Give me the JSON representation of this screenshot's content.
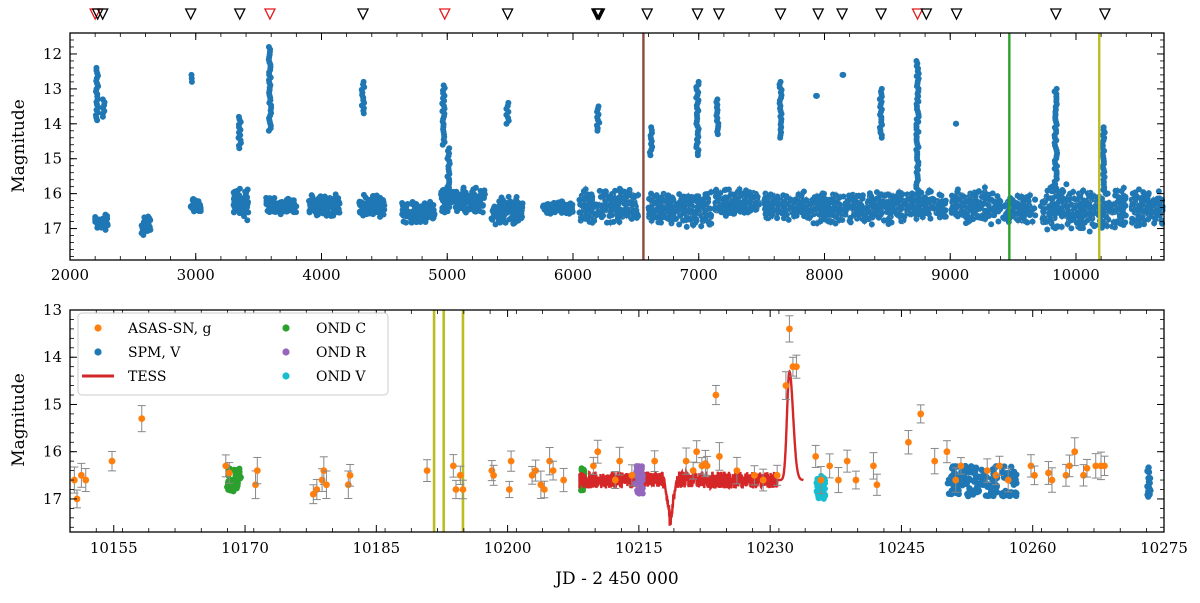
{
  "chart_data": [
    {
      "type": "scatter",
      "title": "",
      "xlabel": "",
      "ylabel": "Magnitude",
      "xlim": [
        2000,
        10700
      ],
      "ylim": [
        17.9,
        11.4
      ],
      "y_inverted": true,
      "x_ticks": [
        "2000",
        "3000",
        "4000",
        "5000",
        "6000",
        "7000",
        "8000",
        "9000",
        "10000"
      ],
      "y_ticks": [
        "12",
        "13",
        "14",
        "15",
        "16",
        "17"
      ],
      "series": [
        {
          "name": "SPM, V",
          "color": "#1f77b4",
          "baseline_groups": [
            {
              "x": [
                2200,
                2300
              ],
              "mag": [
                16.5,
                17.1
              ]
            },
            {
              "x": [
                2560,
                2640
              ],
              "mag": [
                16.6,
                17.3
              ]
            },
            {
              "x": [
                2960,
                3040
              ],
              "mag": [
                16.1,
                16.6
              ]
            },
            {
              "x": [
                3300,
                3420
              ],
              "mag": [
                15.8,
                16.8
              ]
            },
            {
              "x": [
                3560,
                3800
              ],
              "mag": [
                16.1,
                16.6
              ]
            },
            {
              "x": [
                3900,
                4150
              ],
              "mag": [
                16.0,
                16.7
              ]
            },
            {
              "x": [
                4300,
                4500
              ],
              "mag": [
                16.0,
                16.7
              ]
            },
            {
              "x": [
                4640,
                4900
              ],
              "mag": [
                16.2,
                16.9
              ]
            },
            {
              "x": [
                4950,
                5300
              ],
              "mag": [
                15.8,
                16.6
              ]
            },
            {
              "x": [
                5350,
                5600
              ],
              "mag": [
                16.0,
                16.9
              ]
            },
            {
              "x": [
                5760,
                6000
              ],
              "mag": [
                16.2,
                16.6
              ]
            },
            {
              "x": [
                6050,
                6520
              ],
              "mag": [
                15.8,
                16.9
              ]
            },
            {
              "x": [
                6600,
                7100
              ],
              "mag": [
                15.9,
                17.0
              ]
            },
            {
              "x": [
                7130,
                7480
              ],
              "mag": [
                15.8,
                16.7
              ]
            },
            {
              "x": [
                7520,
                7870
              ],
              "mag": [
                15.9,
                16.8
              ]
            },
            {
              "x": [
                7880,
                8260
              ],
              "mag": [
                15.9,
                16.9
              ]
            },
            {
              "x": [
                8270,
                8640
              ],
              "mag": [
                15.9,
                16.9
              ]
            },
            {
              "x": [
                8650,
                8970
              ],
              "mag": [
                15.9,
                16.8
              ]
            },
            {
              "x": [
                9010,
                9400
              ],
              "mag": [
                15.8,
                16.9
              ]
            },
            {
              "x": [
                9420,
                9680
              ],
              "mag": [
                15.9,
                16.9
              ]
            },
            {
              "x": [
                9720,
                10070
              ],
              "mag": [
                15.7,
                17.1
              ]
            },
            {
              "x": [
                10090,
                10400
              ],
              "mag": [
                15.8,
                17.1
              ]
            },
            {
              "x": [
                10440,
                10690
              ],
              "mag": [
                15.8,
                17.0
              ]
            }
          ],
          "outbursts": [
            {
              "x": 2215,
              "peak": 12.4,
              "base": 13.9
            },
            {
              "x": 2265,
              "peak": 13.3,
              "base": 13.8
            },
            {
              "x": 2960,
              "peak": 12.6,
              "base": 12.8
            },
            {
              "x": 3350,
              "peak": 13.8,
              "base": 14.7
            },
            {
              "x": 3590,
              "peak": 11.8,
              "base": 14.2
            },
            {
              "x": 4330,
              "peak": 12.8,
              "base": 13.7
            },
            {
              "x": 4970,
              "peak": 12.9,
              "base": 14.6
            },
            {
              "x": 5010,
              "peak": 14.7,
              "base": 16.1
            },
            {
              "x": 5480,
              "peak": 13.4,
              "base": 14.0
            },
            {
              "x": 6200,
              "peak": 13.5,
              "base": 14.2
            },
            {
              "x": 6620,
              "peak": 14.1,
              "base": 14.9
            },
            {
              "x": 6990,
              "peak": 12.8,
              "base": 14.9
            },
            {
              "x": 7150,
              "peak": 13.3,
              "base": 14.3
            },
            {
              "x": 7650,
              "peak": 12.8,
              "base": 14.4
            },
            {
              "x": 7940,
              "peak": 13.2,
              "base": 13.2
            },
            {
              "x": 8140,
              "peak": 12.6,
              "base": 12.6
            },
            {
              "x": 8450,
              "peak": 13.0,
              "base": 14.4
            },
            {
              "x": 8740,
              "peak": 12.2,
              "base": 15.9
            },
            {
              "x": 9040,
              "peak": 14.0,
              "base": 14.0
            },
            {
              "x": 9840,
              "peak": 13.0,
              "base": 15.8
            },
            {
              "x": 10220,
              "peak": 14.1,
              "base": 15.9
            }
          ]
        }
      ],
      "vlines": [
        {
          "x": 6560,
          "color": "#8c4a3f"
        },
        {
          "x": 9470,
          "color": "#2ca02c"
        },
        {
          "x": 10185,
          "color": "#bcbd22"
        }
      ],
      "top_markers": [
        {
          "x": 2200,
          "color": "red"
        },
        {
          "x": 2220,
          "color": "black"
        },
        {
          "x": 2260,
          "color": "black"
        },
        {
          "x": 2960,
          "color": "black"
        },
        {
          "x": 3350,
          "color": "black"
        },
        {
          "x": 3590,
          "color": "red"
        },
        {
          "x": 4330,
          "color": "black"
        },
        {
          "x": 4980,
          "color": "red"
        },
        {
          "x": 5480,
          "color": "black"
        },
        {
          "x": 6190,
          "color": "black"
        },
        {
          "x": 6200,
          "color": "black"
        },
        {
          "x": 6210,
          "color": "black"
        },
        {
          "x": 6590,
          "color": "black"
        },
        {
          "x": 6990,
          "color": "black"
        },
        {
          "x": 7160,
          "color": "black"
        },
        {
          "x": 7650,
          "color": "black"
        },
        {
          "x": 7950,
          "color": "black"
        },
        {
          "x": 8140,
          "color": "black"
        },
        {
          "x": 8450,
          "color": "black"
        },
        {
          "x": 8740,
          "color": "red"
        },
        {
          "x": 8810,
          "color": "black"
        },
        {
          "x": 9050,
          "color": "black"
        },
        {
          "x": 9840,
          "color": "black"
        },
        {
          "x": 10230,
          "color": "black"
        }
      ]
    },
    {
      "type": "scatter",
      "title": "",
      "xlabel": "JD - 2 450 000",
      "ylabel": "Magnitude",
      "xlim": [
        10150,
        10275
      ],
      "ylim": [
        17.7,
        13.0
      ],
      "y_inverted": true,
      "x_ticks": [
        "10155",
        "10170",
        "10185",
        "10200",
        "10215",
        "10230",
        "10245",
        "10260",
        "10275"
      ],
      "y_ticks": [
        "13",
        "14",
        "15",
        "16",
        "17"
      ],
      "legend": {
        "placement": "top-left",
        "entries": [
          {
            "label": "ASAS-SN, g",
            "color": "#ff7f0e",
            "kind": "dot"
          },
          {
            "label": "SPM, V",
            "color": "#1f77b4",
            "kind": "dot"
          },
          {
            "label": "TESS",
            "color": "#d62728",
            "kind": "line"
          },
          {
            "label": "OND C",
            "color": "#2ca02c",
            "kind": "dot"
          },
          {
            "label": "OND R",
            "color": "#9467bd",
            "kind": "dot"
          },
          {
            "label": "OND V",
            "color": "#17becf",
            "kind": "dot"
          }
        ]
      },
      "asassn_g": [
        [
          10150.5,
          16.6
        ],
        [
          10150.8,
          17.0
        ],
        [
          10151.3,
          16.5
        ],
        [
          10151.8,
          16.6
        ],
        [
          10154.8,
          16.2
        ],
        [
          10158.2,
          15.3
        ],
        [
          10167.8,
          16.3
        ],
        [
          10168.2,
          16.45
        ],
        [
          10171.2,
          16.7
        ],
        [
          10171.4,
          16.4
        ],
        [
          10177.8,
          16.9
        ],
        [
          10178.2,
          16.8
        ],
        [
          10178.8,
          16.6
        ],
        [
          10179.0,
          16.4
        ],
        [
          10179.3,
          16.7
        ],
        [
          10181.8,
          16.7
        ],
        [
          10182.0,
          16.5
        ],
        [
          10190.8,
          16.4
        ],
        [
          10193.8,
          16.3
        ],
        [
          10194.1,
          16.8
        ],
        [
          10194.6,
          16.5
        ],
        [
          10194.9,
          16.8
        ],
        [
          10198.2,
          16.4
        ],
        [
          10198.4,
          16.5
        ],
        [
          10200.2,
          16.8
        ],
        [
          10200.4,
          16.2
        ],
        [
          10202.8,
          16.5
        ],
        [
          10203.2,
          16.4
        ],
        [
          10203.8,
          16.7
        ],
        [
          10204.2,
          16.8
        ],
        [
          10204.8,
          16.2
        ],
        [
          10205.2,
          16.4
        ],
        [
          10206.4,
          16.6
        ],
        [
          10209.8,
          16.3
        ],
        [
          10210.3,
          16.0
        ],
        [
          10212.3,
          16.6
        ],
        [
          10212.8,
          16.2
        ],
        [
          10214.2,
          16.5
        ],
        [
          10216.8,
          16.2
        ],
        [
          10220.4,
          16.2
        ],
        [
          10221.2,
          16.4
        ],
        [
          10221.6,
          16.0
        ],
        [
          10222.2,
          16.3
        ],
        [
          10222.6,
          16.25
        ],
        [
          10222.8,
          16.3
        ],
        [
          10223.8,
          14.8
        ],
        [
          10224.2,
          16.1
        ],
        [
          10226.2,
          16.4
        ],
        [
          10228.2,
          16.5
        ],
        [
          10229.2,
          16.6
        ],
        [
          10230.8,
          16.5
        ],
        [
          10231.8,
          14.6
        ],
        [
          10232.2,
          13.4
        ],
        [
          10232.6,
          14.2
        ],
        [
          10233.0,
          14.2
        ],
        [
          10235.2,
          16.1
        ],
        [
          10235.8,
          16.6
        ],
        [
          10236.8,
          16.3
        ],
        [
          10237.8,
          16.6
        ],
        [
          10238.8,
          16.2
        ],
        [
          10239.8,
          16.6
        ],
        [
          10241.8,
          16.3
        ],
        [
          10242.2,
          16.7
        ],
        [
          10245.8,
          15.8
        ],
        [
          10247.2,
          15.2
        ],
        [
          10248.8,
          16.2
        ],
        [
          10250.2,
          16.0
        ],
        [
          10251.2,
          16.6
        ],
        [
          10251.8,
          16.3
        ],
        [
          10254.8,
          16.4
        ],
        [
          10255.8,
          16.5
        ],
        [
          10256.2,
          16.3
        ],
        [
          10257.2,
          16.6
        ],
        [
          10259.8,
          16.3
        ],
        [
          10260.2,
          16.5
        ],
        [
          10261.8,
          16.45
        ],
        [
          10262.2,
          16.6
        ],
        [
          10263.8,
          16.5
        ],
        [
          10264.2,
          16.3
        ],
        [
          10264.8,
          16.0
        ],
        [
          10265.8,
          16.5
        ],
        [
          10266.2,
          16.35
        ],
        [
          10267.2,
          16.3
        ],
        [
          10267.8,
          16.3
        ],
        [
          10268.2,
          16.3
        ]
      ],
      "spm_v": {
        "windows": [
          [
            10250.3,
            10256.0
          ],
          [
            10256.5,
            10258.3
          ],
          [
            10273.1,
            10273.5
          ]
        ],
        "mag_range": [
          16.3,
          16.95
        ]
      },
      "tess": {
        "x_range": [
          10208.2,
          10233.8
        ],
        "baseline": 16.6,
        "scatter": 0.18,
        "dip": {
          "x": 10218.6,
          "mag": 17.7
        },
        "peak": {
          "x": 10232.2,
          "mag": 14.3
        }
      },
      "ond_c": {
        "x_range": [
          10167.9,
          10169.6
        ],
        "extra_x": [
          10208.3,
          10208.8
        ],
        "mag_range": [
          16.35,
          16.85
        ]
      },
      "ond_r": {
        "x_range": [
          10214.6,
          10215.5
        ],
        "mag_range": [
          16.3,
          16.9
        ]
      },
      "ond_v": {
        "x_range": [
          10235.3,
          10236.3
        ],
        "mag_range": [
          16.5,
          17.0
        ]
      },
      "vlines": [
        {
          "x": 10191.6,
          "color": "#bcbd22"
        },
        {
          "x": 10192.7,
          "color": "#bcbd22"
        },
        {
          "x": 10194.9,
          "color": "#bcbd22"
        }
      ]
    }
  ]
}
